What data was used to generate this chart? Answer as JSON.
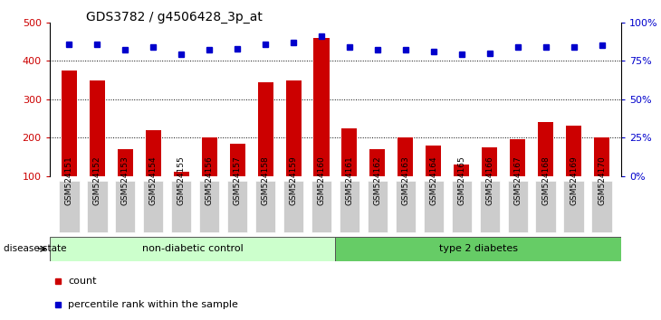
{
  "title": "GDS3782 / g4506428_3p_at",
  "categories": [
    "GSM524151",
    "GSM524152",
    "GSM524153",
    "GSM524154",
    "GSM524155",
    "GSM524156",
    "GSM524157",
    "GSM524158",
    "GSM524159",
    "GSM524160",
    "GSM524161",
    "GSM524162",
    "GSM524163",
    "GSM524164",
    "GSM524165",
    "GSM524166",
    "GSM524167",
    "GSM524168",
    "GSM524169",
    "GSM524170"
  ],
  "bar_values": [
    375,
    350,
    170,
    220,
    110,
    200,
    185,
    345,
    350,
    460,
    225,
    170,
    200,
    180,
    130,
    175,
    195,
    240,
    230,
    200
  ],
  "dot_values": [
    86,
    86,
    82,
    84,
    79,
    82,
    83,
    86,
    87,
    91,
    84,
    82,
    82,
    81,
    79,
    80,
    84,
    84,
    84,
    85
  ],
  "bar_color": "#cc0000",
  "dot_color": "#0000cc",
  "ylim_left": [
    100,
    500
  ],
  "ylim_right": [
    0,
    100
  ],
  "yticks_left": [
    100,
    200,
    300,
    400,
    500
  ],
  "yticks_right": [
    0,
    25,
    50,
    75,
    100
  ],
  "ytick_labels_right": [
    "0%",
    "25%",
    "50%",
    "75%",
    "100%"
  ],
  "grid_values": [
    200,
    300,
    400
  ],
  "group1_label": "non-diabetic control",
  "group2_label": "type 2 diabetes",
  "group1_color": "#ccffcc",
  "group2_color": "#66cc66",
  "group1_count": 10,
  "group2_count": 10,
  "disease_label": "disease state",
  "legend_count_label": "count",
  "legend_percentile_label": "percentile rank within the sample",
  "bg_color": "#ffffff",
  "tick_bg_color": "#cccccc"
}
